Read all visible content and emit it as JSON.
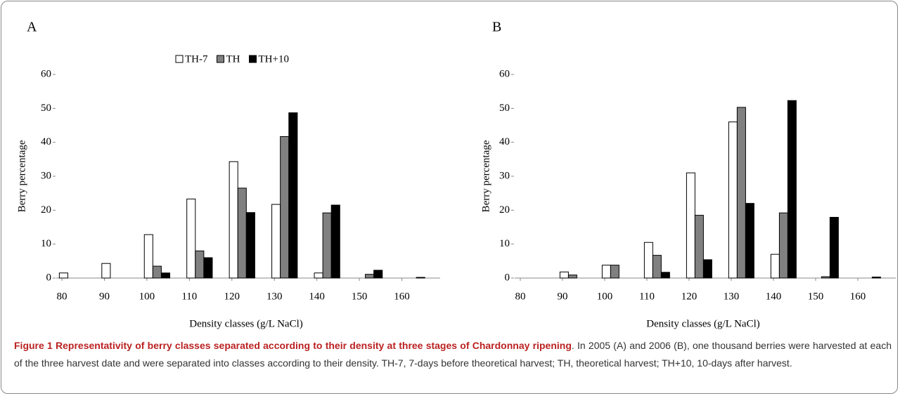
{
  "chart_data": [
    {
      "type": "bar",
      "label": "A",
      "y_label": "Berry percentage",
      "x_label": "Density classes (g/L NaCl)",
      "x": [
        80,
        90,
        100,
        110,
        120,
        130,
        140,
        150,
        160
      ],
      "xlim": [
        80,
        170
      ],
      "xticks": [
        80,
        90,
        100,
        110,
        120,
        130,
        140,
        150,
        160
      ],
      "ylim": [
        0,
        60
      ],
      "yticks": [
        0,
        10,
        20,
        30,
        40,
        50,
        60
      ],
      "legend": "top",
      "series": [
        {
          "name": "TH-7",
          "color": "#ffffff",
          "values": [
            1.5,
            4.3,
            12.8,
            23.3,
            34.3,
            21.7,
            1.5,
            0,
            0
          ]
        },
        {
          "name": "TH",
          "color": "#808080",
          "values": [
            0,
            0,
            3.5,
            8,
            26.5,
            41.7,
            19.2,
            1.1,
            0
          ]
        },
        {
          "name": "TH+10",
          "color": "#000000",
          "values": [
            0,
            0,
            1.5,
            6,
            19.3,
            48.7,
            21.5,
            2.3,
            0.2
          ]
        }
      ]
    },
    {
      "type": "bar",
      "label": "B",
      "y_label": "Berry percentage",
      "x_label": "Density classes (g/L NaCl)",
      "x": [
        80,
        90,
        100,
        110,
        120,
        130,
        140,
        150,
        160
      ],
      "xlim": [
        80,
        170
      ],
      "xticks": [
        80,
        90,
        100,
        110,
        120,
        130,
        140,
        150,
        160
      ],
      "ylim": [
        0,
        60
      ],
      "yticks": [
        0,
        10,
        20,
        30,
        40,
        50,
        60
      ],
      "series": [
        {
          "color": "#ffffff",
          "values": [
            0,
            1.8,
            3.8,
            10.5,
            31,
            46,
            7,
            0,
            0
          ]
        },
        {
          "color": "#808080",
          "values": [
            0,
            0.9,
            3.8,
            6.7,
            18.5,
            50.3,
            19.2,
            0.4,
            0
          ]
        },
        {
          "color": "#000000",
          "values": [
            0,
            0,
            0,
            1.7,
            5.4,
            22,
            52.3,
            17.9,
            0.3
          ]
        }
      ]
    }
  ],
  "caption": {
    "title": "Figure 1 Representativity of berry classes separated according to their density at three stages of Chardonnay ripening",
    "text": ". In 2005 (A) and 2006 (B), one thousand berries were harvested at each of the three harvest date and were separated into classes according to their density. TH-7, 7-days before theoretical harvest; TH, theoretical harvest; TH+10, 10-days after harvest."
  }
}
